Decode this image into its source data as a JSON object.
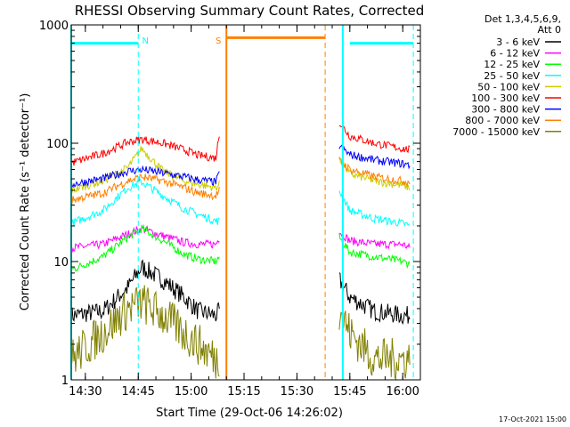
{
  "chart_data": {
    "type": "line",
    "title": "RHESSI Observing Summary Count Rates, Corrected",
    "xlabel": "Start Time (29-Oct-06 14:26:02)",
    "ylabel": "Corrected Count Rate (s⁻¹ detector⁻¹)",
    "yscale": "log",
    "ylim": [
      1,
      1000
    ],
    "xlim": [
      "14:26",
      "16:05"
    ],
    "x_ticks": [
      "14:30",
      "14:45",
      "15:00",
      "15:15",
      "15:30",
      "15:45",
      "16:00"
    ],
    "y_ticks": [
      "1",
      "10",
      "100",
      "1000"
    ],
    "legend_header": [
      "Det 1,3,4,5,6,9,",
      "Att 0"
    ],
    "legend_position": "right",
    "timestamp": "17-Oct-2021 15:00",
    "gap": {
      "start": "15:09",
      "end": "15:42"
    },
    "series": [
      {
        "name": "3 - 6 keV",
        "color": "#000000",
        "x": [
          "14:26",
          "14:35",
          "14:42",
          "14:46",
          "14:52",
          "14:58",
          "15:02",
          "15:07",
          "15:08",
          "15:42",
          "15:45",
          "15:52",
          "16:00",
          "16:02"
        ],
        "y": [
          3.5,
          3.8,
          6,
          9,
          7,
          5,
          3.8,
          3.5,
          3.8,
          7,
          5,
          3.8,
          3.5,
          3.5
        ]
      },
      {
        "name": "6 - 12 keV",
        "color": "#ff00ff",
        "x": [
          "14:26",
          "14:35",
          "14:42",
          "14:46",
          "14:52",
          "14:58",
          "15:02",
          "15:07",
          "15:08",
          "15:42",
          "15:45",
          "15:52",
          "16:00",
          "16:02"
        ],
        "y": [
          13,
          14,
          17,
          19,
          16.5,
          14.5,
          14,
          14,
          16,
          18,
          15,
          14,
          14,
          13
        ]
      },
      {
        "name": "12 - 25 keV",
        "color": "#00ff00",
        "x": [
          "14:26",
          "14:35",
          "14:42",
          "14:46",
          "14:52",
          "14:58",
          "15:02",
          "15:07",
          "15:08",
          "15:42",
          "15:45",
          "15:52",
          "16:00",
          "16:02"
        ],
        "y": [
          8.5,
          11,
          16,
          19,
          15,
          11.5,
          10.5,
          10,
          11,
          16,
          12,
          11,
          10,
          9.5
        ]
      },
      {
        "name": "25 - 50 keV",
        "color": "#00ffff",
        "x": [
          "14:26",
          "14:35",
          "14:42",
          "14:46",
          "14:52",
          "14:58",
          "15:02",
          "15:07",
          "15:08",
          "15:42",
          "15:45",
          "15:52",
          "16:00",
          "16:02"
        ],
        "y": [
          21,
          27,
          42,
          47,
          36,
          28,
          25,
          22,
          22,
          40,
          27,
          23,
          21,
          20
        ]
      },
      {
        "name": "50 - 100 keV",
        "color": "#cccc00",
        "x": [
          "14:26",
          "14:35",
          "14:42",
          "14:46",
          "14:52",
          "14:58",
          "15:02",
          "15:07",
          "15:08",
          "15:42",
          "15:45",
          "15:52",
          "16:00",
          "16:02"
        ],
        "y": [
          40,
          48,
          62,
          90,
          58,
          48,
          45,
          42,
          45,
          75,
          55,
          48,
          44,
          42
        ]
      },
      {
        "name": "100 - 300 keV",
        "color": "#ff0000",
        "x": [
          "14:26",
          "14:35",
          "14:42",
          "14:46",
          "14:52",
          "14:58",
          "15:02",
          "15:07",
          "15:08",
          "15:42",
          "15:45",
          "15:52",
          "16:00",
          "16:02"
        ],
        "y": [
          68,
          82,
          102,
          108,
          100,
          88,
          79,
          75,
          120,
          150,
          115,
          100,
          90,
          88
        ]
      },
      {
        "name": "300 - 800 keV",
        "color": "#0000ff",
        "x": [
          "14:26",
          "14:35",
          "14:42",
          "14:46",
          "14:52",
          "14:58",
          "15:02",
          "15:07",
          "15:08",
          "15:42",
          "15:45",
          "15:52",
          "16:00",
          "16:02"
        ],
        "y": [
          45,
          50,
          58,
          60,
          56,
          52,
          49,
          47,
          55,
          95,
          80,
          72,
          67,
          65
        ]
      },
      {
        "name": "800 - 7000 keV",
        "color": "#ff8000",
        "x": [
          "14:26",
          "14:35",
          "14:42",
          "14:46",
          "14:52",
          "14:58",
          "15:02",
          "15:07",
          "15:08",
          "15:42",
          "15:45",
          "15:52",
          "16:00",
          "16:02"
        ],
        "y": [
          33,
          38,
          48,
          52,
          48,
          42,
          38,
          36,
          40,
          72,
          60,
          52,
          48,
          47
        ]
      },
      {
        "name": "7000 - 15000 keV",
        "color": "#808000",
        "x": [
          "14:26",
          "14:35",
          "14:42",
          "14:46",
          "14:52",
          "14:58",
          "15:02",
          "15:07",
          "15:08",
          "15:42",
          "15:45",
          "15:52",
          "16:00",
          "16:02"
        ],
        "y": [
          1.5,
          2.5,
          4,
          4.5,
          3.5,
          2.5,
          2,
          1.5,
          1.5,
          4,
          2.5,
          1.5,
          1.5,
          1.5
        ]
      }
    ],
    "annotations": [
      {
        "label": "N",
        "color": "#00ffff",
        "kind": "night",
        "x": "14:45"
      },
      {
        "label": "S",
        "color": "#ff8000",
        "kind": "saa",
        "x": "15:10"
      }
    ],
    "night_bars": [
      {
        "start": "14:26",
        "end": "14:45",
        "level": 700
      },
      {
        "start": "15:45",
        "end": "16:03",
        "level": 700
      }
    ],
    "saa_bar": {
      "start": "15:10",
      "end": "15:38",
      "level": 780
    },
    "vlines": [
      {
        "x": "14:26",
        "color": "#00ffff",
        "style": "solid"
      },
      {
        "x": "14:45",
        "color": "#00ffff",
        "style": "dashed"
      },
      {
        "x": "15:10",
        "color": "#ff8000",
        "style": "solid"
      },
      {
        "x": "15:38",
        "color": "#ff8000",
        "style": "dashed"
      },
      {
        "x": "15:43",
        "color": "#00ffff",
        "style": "solid"
      },
      {
        "x": "16:03",
        "color": "#00ffff",
        "style": "dashed"
      }
    ]
  }
}
